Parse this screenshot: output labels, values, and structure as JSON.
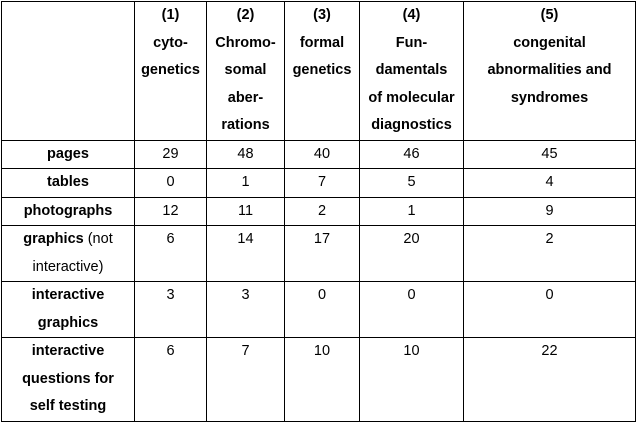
{
  "columns": [
    {
      "num": "(1)",
      "lines": [
        "cyto-",
        "genetics"
      ]
    },
    {
      "num": "(2)",
      "lines": [
        "Chromo-",
        "somal",
        "aber-",
        "rations"
      ]
    },
    {
      "num": "(3)",
      "lines": [
        "formal",
        "genetics"
      ]
    },
    {
      "num": "(4)",
      "lines": [
        "Fun-",
        "damentals",
        "of molecular",
        "diagnostics"
      ]
    },
    {
      "num": "(5)",
      "lines": [
        "congenital",
        "abnormalities and",
        "syndromes"
      ]
    }
  ],
  "rows": [
    {
      "label_lines": [
        "pages"
      ],
      "values": [
        "29",
        "48",
        "40",
        "46",
        "45"
      ]
    },
    {
      "label_lines": [
        "tables"
      ],
      "values": [
        "0",
        "1",
        "7",
        "5",
        "4"
      ]
    },
    {
      "label_lines": [
        "photographs"
      ],
      "values": [
        "12",
        "11",
        "2",
        "1",
        "9"
      ]
    },
    {
      "label_lines": [
        "graphics"
      ],
      "label_note": " (not",
      "label_extra": "interactive)",
      "values": [
        "6",
        "14",
        "17",
        "20",
        "2"
      ]
    },
    {
      "label_lines": [
        "interactive",
        "graphics"
      ],
      "values": [
        "3",
        "3",
        "0",
        "0",
        "0"
      ]
    },
    {
      "label_lines": [
        "interactive",
        "questions for",
        "self testing"
      ],
      "values": [
        "6",
        "7",
        "10",
        "10",
        "22"
      ]
    }
  ]
}
